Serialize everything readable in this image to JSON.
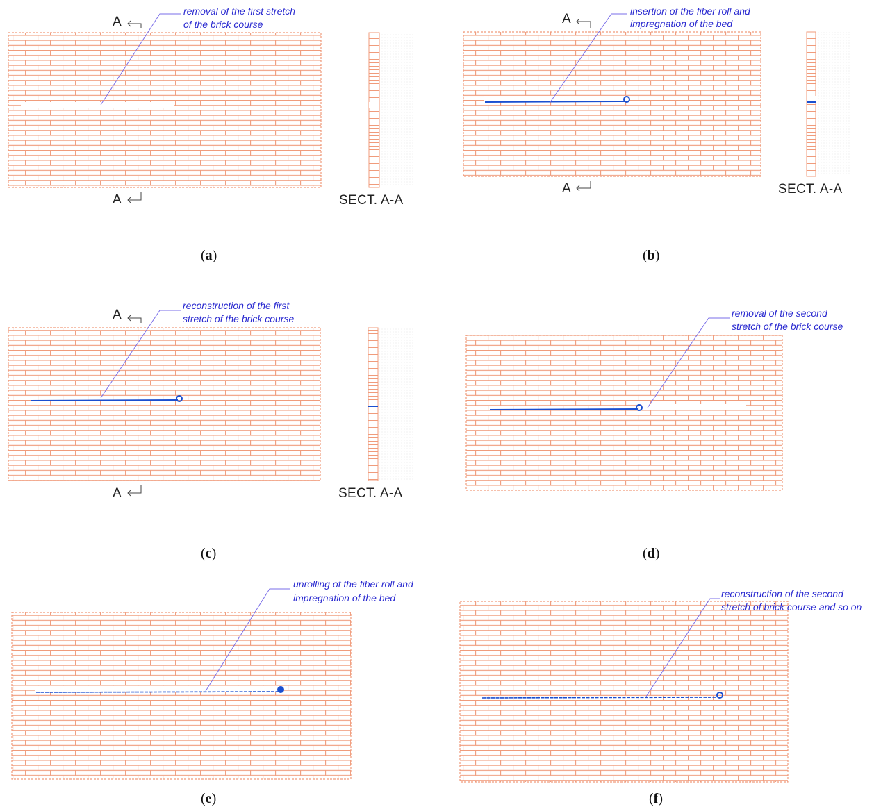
{
  "colors": {
    "brick": "#f09b7b",
    "annotation": "#2a2ad0",
    "fiber": "#1a4fd0"
  },
  "section_marker": "A",
  "section_label": "SECT. A-A",
  "panels": [
    {
      "id": "a",
      "label_letter": "a",
      "annotation_line1": "removal of the first stretch",
      "annotation_line2": "of the brick course"
    },
    {
      "id": "b",
      "label_letter": "b",
      "annotation_line1": "insertion of the fiber roll and",
      "annotation_line2": "impregnation of the bed"
    },
    {
      "id": "c",
      "label_letter": "c",
      "annotation_line1": "reconstruction of the first",
      "annotation_line2": "stretch of the brick course"
    },
    {
      "id": "d",
      "label_letter": "d",
      "annotation_line1": "removal of the second",
      "annotation_line2": "stretch of the brick course"
    },
    {
      "id": "e",
      "label_letter": "e",
      "annotation_line1": "unrolling of the fiber roll and",
      "annotation_line2": "impregnation of the bed"
    },
    {
      "id": "f",
      "label_letter": "f",
      "annotation_line1": "reconstruction of the second",
      "annotation_line2": "stretch of brick course and so on"
    }
  ]
}
